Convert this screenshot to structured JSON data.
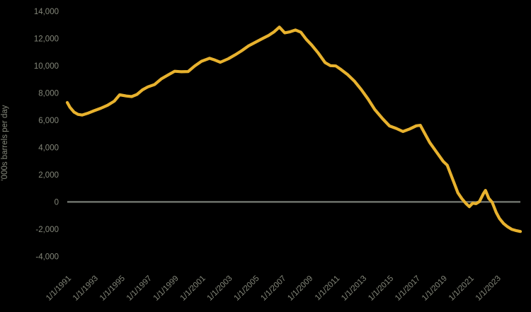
{
  "colors": {
    "background": "#000000",
    "line": "#E8B22E",
    "zero_line": "#6E726B",
    "labels": "#84877A"
  },
  "chart_data": {
    "type": "line",
    "title": "",
    "xlabel": "",
    "ylabel": "'000s barrels per day",
    "legend": false,
    "grid": false,
    "zero_baseline": true,
    "x_range": [
      1991,
      2024.75
    ],
    "y_range": [
      -4000,
      14000
    ],
    "y_ticks": [
      {
        "value": 14000,
        "label": "14,000"
      },
      {
        "value": 12000,
        "label": "12,000"
      },
      {
        "value": 10000,
        "label": "10,000"
      },
      {
        "value": 8000,
        "label": "8,000"
      },
      {
        "value": 6000,
        "label": "6,000"
      },
      {
        "value": 4000,
        "label": "4,000"
      },
      {
        "value": 2000,
        "label": "2,000"
      },
      {
        "value": 0,
        "label": "0"
      },
      {
        "value": -2000,
        "label": "-2,000"
      },
      {
        "value": -4000,
        "label": "-4,000"
      }
    ],
    "x_ticks": [
      {
        "x": 1991,
        "label": "1/1/1991"
      },
      {
        "x": 1993,
        "label": "1/1/1993"
      },
      {
        "x": 1995,
        "label": "1/1/1995"
      },
      {
        "x": 1997,
        "label": "1/1/1997"
      },
      {
        "x": 1999,
        "label": "1/1/1999"
      },
      {
        "x": 2001,
        "label": "1/1/2001"
      },
      {
        "x": 2003,
        "label": "1/1/2003"
      },
      {
        "x": 2005,
        "label": "1/1/2005"
      },
      {
        "x": 2007,
        "label": "1/1/2007"
      },
      {
        "x": 2009,
        "label": "1/1/2009"
      },
      {
        "x": 2011,
        "label": "1/1/2011"
      },
      {
        "x": 2013,
        "label": "1/1/2013"
      },
      {
        "x": 2015,
        "label": "1/1/2015"
      },
      {
        "x": 2017,
        "label": "1/1/2017"
      },
      {
        "x": 2019,
        "label": "1/1/2019"
      },
      {
        "x": 2021,
        "label": "1/1/2021"
      },
      {
        "x": 2023,
        "label": "1/1/2023"
      }
    ],
    "series": [
      {
        "name": "000s barrels per day",
        "points": [
          [
            1991.0,
            7300
          ],
          [
            1991.2,
            6950
          ],
          [
            1991.5,
            6600
          ],
          [
            1991.8,
            6430
          ],
          [
            1992.1,
            6380
          ],
          [
            1992.5,
            6500
          ],
          [
            1993.0,
            6700
          ],
          [
            1993.5,
            6880
          ],
          [
            1994.0,
            7100
          ],
          [
            1994.5,
            7400
          ],
          [
            1994.9,
            7870
          ],
          [
            1995.4,
            7780
          ],
          [
            1995.8,
            7740
          ],
          [
            1996.2,
            7900
          ],
          [
            1996.6,
            8230
          ],
          [
            1997.0,
            8450
          ],
          [
            1997.5,
            8620
          ],
          [
            1998.0,
            9030
          ],
          [
            1998.5,
            9320
          ],
          [
            1999.0,
            9600
          ],
          [
            1999.5,
            9560
          ],
          [
            2000.0,
            9580
          ],
          [
            2000.5,
            9990
          ],
          [
            2001.0,
            10330
          ],
          [
            2001.6,
            10550
          ],
          [
            2002.0,
            10420
          ],
          [
            2002.4,
            10260
          ],
          [
            2003.0,
            10520
          ],
          [
            2003.5,
            10800
          ],
          [
            2004.0,
            11110
          ],
          [
            2004.5,
            11460
          ],
          [
            2005.0,
            11720
          ],
          [
            2005.5,
            11980
          ],
          [
            2006.0,
            12230
          ],
          [
            2006.4,
            12490
          ],
          [
            2006.8,
            12840
          ],
          [
            2007.2,
            12420
          ],
          [
            2007.6,
            12500
          ],
          [
            2008.0,
            12630
          ],
          [
            2008.4,
            12460
          ],
          [
            2008.8,
            11950
          ],
          [
            2009.2,
            11530
          ],
          [
            2009.7,
            10930
          ],
          [
            2010.2,
            10240
          ],
          [
            2010.6,
            10010
          ],
          [
            2011.0,
            9990
          ],
          [
            2011.4,
            9720
          ],
          [
            2011.9,
            9340
          ],
          [
            2012.4,
            8860
          ],
          [
            2012.9,
            8250
          ],
          [
            2013.4,
            7560
          ],
          [
            2013.9,
            6790
          ],
          [
            2014.5,
            6100
          ],
          [
            2015.0,
            5580
          ],
          [
            2015.5,
            5400
          ],
          [
            2016.0,
            5170
          ],
          [
            2016.5,
            5360
          ],
          [
            2017.0,
            5590
          ],
          [
            2017.3,
            5630
          ],
          [
            2017.7,
            4900
          ],
          [
            2018.0,
            4360
          ],
          [
            2018.5,
            3670
          ],
          [
            2019.0,
            2980
          ],
          [
            2019.3,
            2700
          ],
          [
            2019.8,
            1430
          ],
          [
            2020.1,
            660
          ],
          [
            2020.4,
            230
          ],
          [
            2020.7,
            -120
          ],
          [
            2020.95,
            -345
          ],
          [
            2021.2,
            -90
          ],
          [
            2021.45,
            -130
          ],
          [
            2021.7,
            30
          ],
          [
            2022.0,
            620
          ],
          [
            2022.15,
            850
          ],
          [
            2022.4,
            260
          ],
          [
            2022.65,
            -30
          ],
          [
            2022.95,
            -780
          ],
          [
            2023.2,
            -1230
          ],
          [
            2023.5,
            -1590
          ],
          [
            2023.8,
            -1830
          ],
          [
            2024.1,
            -2010
          ],
          [
            2024.4,
            -2100
          ],
          [
            2024.75,
            -2170
          ]
        ]
      }
    ]
  }
}
